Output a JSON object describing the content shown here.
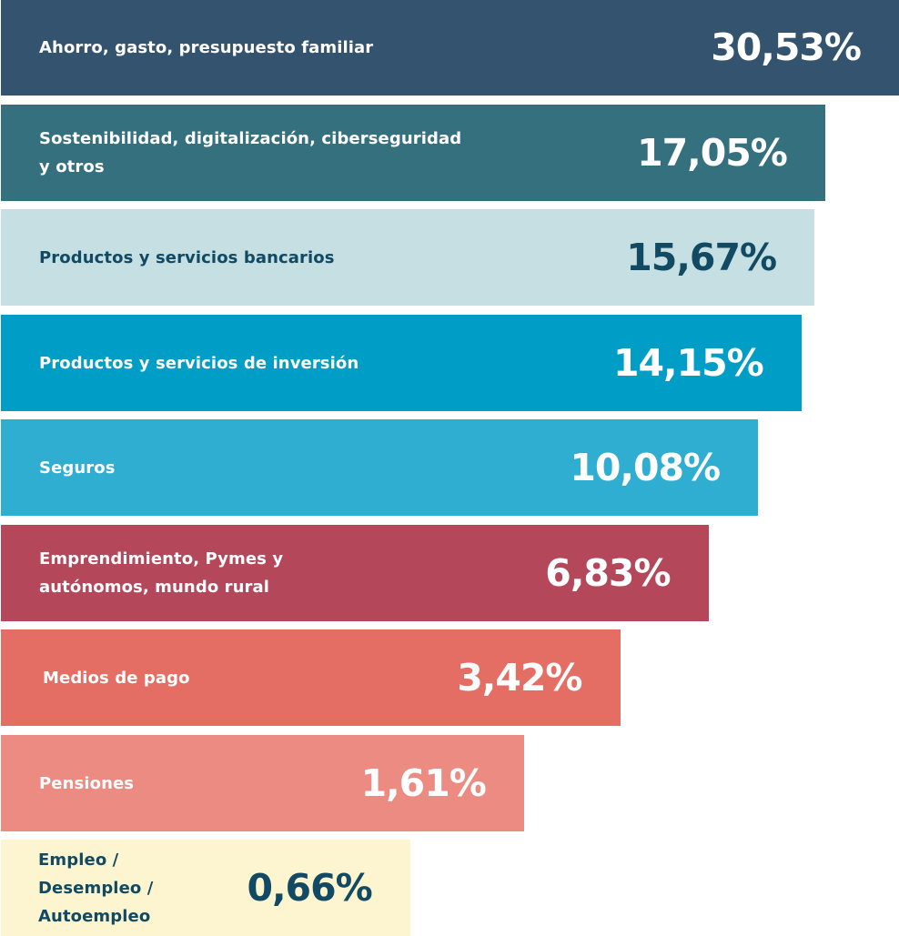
{
  "chart_data": {
    "type": "bar",
    "orientation": "horizontal",
    "grid": false,
    "legend": "none",
    "categories": [
      [
        "Ahorro, gasto, presupuesto familiar"
      ],
      [
        "Sostenibilidad, digitalización, ciberseguridad",
        "y otros"
      ],
      [
        "Productos y servicios bancarios"
      ],
      [
        "Productos y servicios de inversión"
      ],
      [
        "Seguros"
      ],
      [
        "Emprendimiento, Pymes y",
        "autónomos, mundo rural"
      ],
      [
        "Medios de pago"
      ],
      [
        "Pensiones"
      ],
      [
        "Empleo /",
        "Desempleo /",
        "Autoempleo"
      ]
    ],
    "values": [
      30.53,
      17.05,
      15.67,
      14.15,
      10.08,
      6.83,
      3.42,
      1.61,
      0.66
    ],
    "value_labels": [
      "30,53%",
      "17,05%",
      "15,67%",
      "14,15%",
      "10,08%",
      "6,83%",
      "3,42%",
      "1,61%",
      "0,66%"
    ],
    "colors": [
      "#33536e",
      "#35707f",
      "#c5dfe2",
      "#009dc7",
      "#30aed2",
      "#b4475a",
      "#e56e64",
      "#eb8b82",
      "#fdf5d0"
    ],
    "text_colors": [
      "#ffffff",
      "#ffffff",
      "#114a62",
      "#ffffff",
      "#ffffff",
      "#ffffff",
      "#ffffff",
      "#ffffff",
      "#114a62"
    ]
  }
}
